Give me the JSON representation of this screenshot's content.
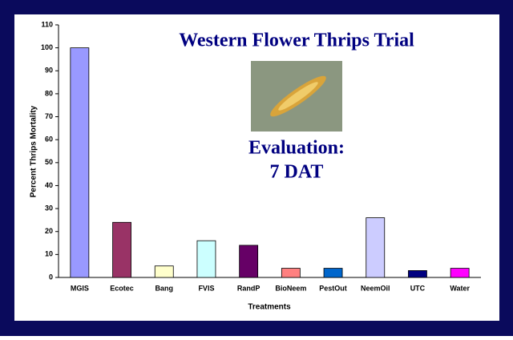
{
  "chart_data": {
    "type": "bar",
    "title": "Western Flower Thrips Trial",
    "annotations": [
      "Evaluation:",
      "7 DAT"
    ],
    "x_label": "Treatments",
    "y_label": "Percent Thrips Mortality",
    "categories": [
      "MGIS",
      "Ecotec",
      "Bang",
      "FVIS",
      "RandP",
      "BioNeem",
      "PestOut",
      "NeemOil",
      "UTC",
      "Water"
    ],
    "values": [
      100,
      24,
      5,
      16,
      14,
      4,
      4,
      26,
      3,
      4
    ],
    "colors": [
      "#9999ff",
      "#993366",
      "#ffffcc",
      "#ccffff",
      "#660066",
      "#ff8080",
      "#0066cc",
      "#ccccff",
      "#000080",
      "#ff00ff"
    ],
    "ylim": [
      0,
      110
    ],
    "yticks": [
      0,
      10,
      20,
      30,
      40,
      50,
      60,
      70,
      80,
      90,
      100,
      110
    ],
    "grid": false
  }
}
